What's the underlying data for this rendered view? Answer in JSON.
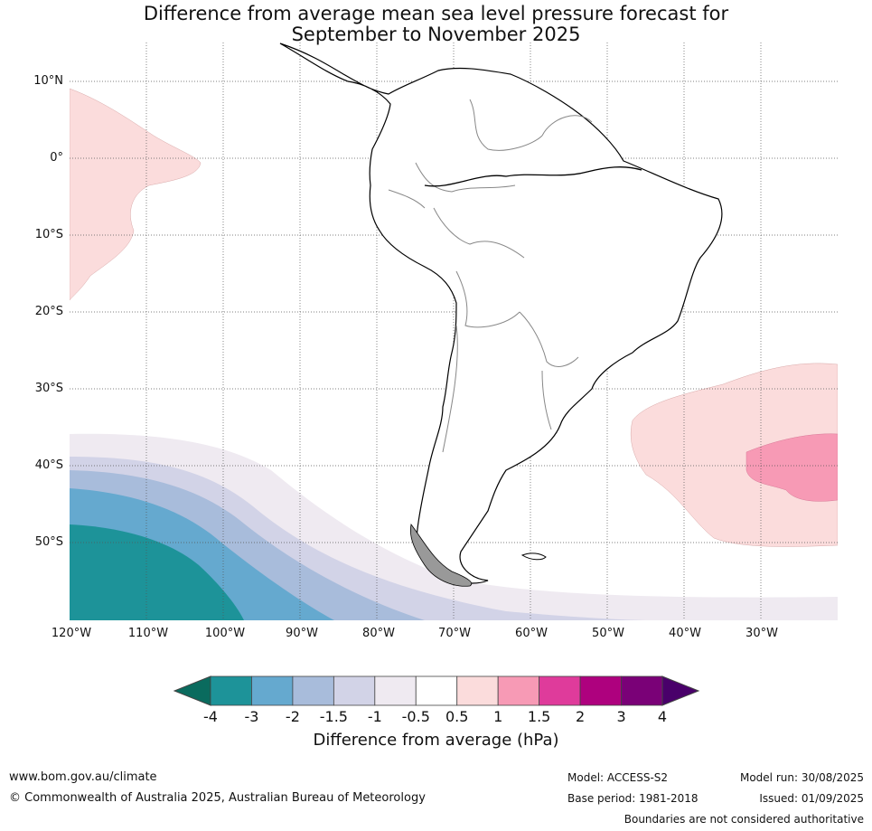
{
  "title_line1": "Difference from average mean sea level pressure forecast for",
  "title_line2": "September to November 2025",
  "map": {
    "region": "South America",
    "lat_labels": [
      "10°N",
      "0°",
      "10°S",
      "20°S",
      "30°S",
      "40°S",
      "50°S"
    ],
    "lon_labels": [
      "120°W",
      "110°W",
      "100°W",
      "90°W",
      "80°W",
      "70°W",
      "60°W",
      "50°W",
      "40°W",
      "30°W"
    ],
    "gridlines": "dotted",
    "anomaly_areas": [
      {
        "label": "0.5 to 1 hPa",
        "location": "eastern Pacific near equator",
        "color": "#fbdcdc"
      },
      {
        "label": "0.5 to 1 hPa",
        "location": "South Atlantic",
        "color": "#fbdcdc"
      },
      {
        "label": "1 to 1.5 hPa",
        "location": "South Atlantic core",
        "color": "#f79ab5"
      },
      {
        "label": "-4 to -0.5 hPa",
        "location": "Southern Pacific / Southern Ocean",
        "color": "#1d9399"
      }
    ]
  },
  "colorbar": {
    "title": "Difference from average (hPa)",
    "ticks": [
      "-4",
      "-3",
      "-2",
      "-1.5",
      "-1",
      "-0.5",
      "0.5",
      "1",
      "1.5",
      "2",
      "3",
      "4"
    ],
    "colors": [
      "#1d9399",
      "#65a9cf",
      "#a8bcdb",
      "#d2d3e7",
      "#efeaf1",
      "#ffffff",
      "#fbdcdc",
      "#f79ab5",
      "#df3b9b",
      "#ae017e",
      "#7a0177"
    ],
    "under_color": "#0a6b5e",
    "over_color": "#49006a"
  },
  "footer": {
    "url": "www.bom.gov.au/climate",
    "copyright": "© Commonwealth of Australia 2025, Australian Bureau of Meteorology",
    "model": "Model: ACCESS-S2",
    "base_period": "Base period: 1981-2018",
    "model_run": "Model run: 30/08/2025",
    "issued": "Issued: 01/09/2025",
    "boundaries": "Boundaries are not considered authoritative"
  }
}
